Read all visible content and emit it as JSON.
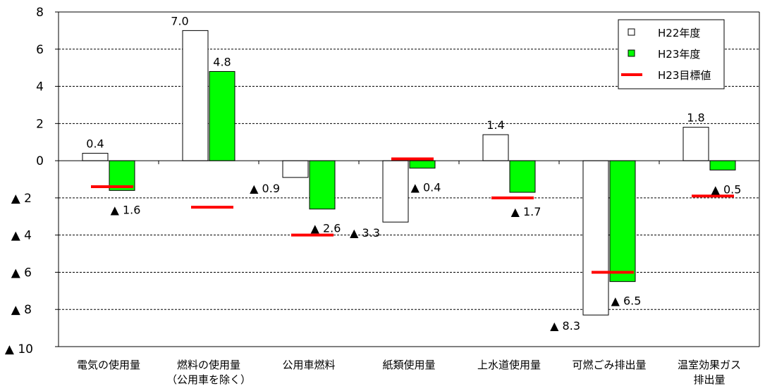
{
  "chart_data": {
    "type": "bar",
    "categories": [
      [
        "電気の使用量"
      ],
      [
        "燃料の使用量",
        "（公用車を除く）"
      ],
      [
        "公用車燃料"
      ],
      [
        "紙類使用量"
      ],
      [
        "上水道使用量"
      ],
      [
        "可燃ごみ排出量"
      ],
      [
        "温室効果ガス",
        "排出量"
      ]
    ],
    "series": [
      {
        "name": "H22年度",
        "color": "#ffffff",
        "values": [
          0.4,
          7.0,
          -0.9,
          -3.3,
          1.4,
          -8.3,
          1.8
        ],
        "labels": [
          "0.4",
          "7.0",
          "▲ 0.9",
          "▲ 3.3",
          "1.4",
          "▲ 8.3",
          "1.8"
        ]
      },
      {
        "name": "H23年度",
        "color": "#00ff00",
        "values": [
          -1.6,
          4.8,
          -2.6,
          -0.4,
          -1.7,
          -6.5,
          -0.5
        ],
        "labels": [
          "▲ 1.6",
          "4.8",
          "▲ 2.6",
          "▲ 0.4",
          "▲ 1.7",
          "▲ 6.5",
          "▲ 0.5"
        ]
      }
    ],
    "target": {
      "name": "H23目標値",
      "color": "#ff0000",
      "values": [
        -1.4,
        -2.5,
        -4.0,
        0.1,
        -2.0,
        -6.0,
        -1.9
      ]
    },
    "ylim": [
      -10,
      8
    ],
    "yticks": [
      {
        "v": 8,
        "label": "8"
      },
      {
        "v": 6,
        "label": "6"
      },
      {
        "v": 4,
        "label": "4"
      },
      {
        "v": 2,
        "label": "2"
      },
      {
        "v": 0,
        "label": "0"
      },
      {
        "v": -2,
        "label": "▲ 2"
      },
      {
        "v": -4,
        "label": "▲ 4"
      },
      {
        "v": -6,
        "label": "▲ 6"
      },
      {
        "v": -8,
        "label": "▲ 8"
      },
      {
        "v": -10,
        "label": "▲ 10"
      }
    ],
    "grid": true,
    "legend_position": "top-right"
  }
}
